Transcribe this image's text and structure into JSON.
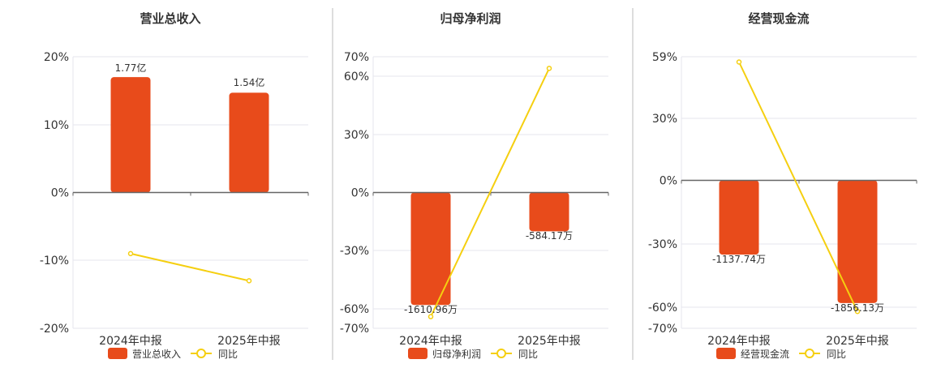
{
  "colors": {
    "bar": "#E84B1B",
    "line": "#F5CF10",
    "grid": "#E6E6EE",
    "axis": "#666666",
    "divider": "#BBBBBB",
    "text": "#333333"
  },
  "legend_common": {
    "line_label": "同比"
  },
  "chart_data": [
    {
      "type": "bar",
      "title": "营业总收入",
      "categories": [
        "2024年中报",
        "2025年中报"
      ],
      "bar_labels": [
        "1.77亿",
        "1.54亿"
      ],
      "bar_values_pct": [
        17,
        14.7
      ],
      "line_values_pct": [
        -9,
        -13
      ],
      "y_ticks": [
        "20%",
        "10%",
        "0%",
        "-10%",
        "-20%"
      ],
      "ylim": [
        -20,
        20
      ],
      "legend": [
        "营业总收入",
        "同比"
      ]
    },
    {
      "type": "bar",
      "title": "归母净利润",
      "categories": [
        "2024年中报",
        "2025年中报"
      ],
      "bar_labels": [
        "-1610.96万",
        "-584.17万"
      ],
      "bar_values_pct": [
        -58,
        -20
      ],
      "line_values_pct": [
        -64,
        64
      ],
      "y_ticks": [
        "70%",
        "60%",
        "30%",
        "0%",
        "-30%",
        "-60%",
        "-70%"
      ],
      "ylim": [
        -70,
        70
      ],
      "legend": [
        "归母净利润",
        "同比"
      ]
    },
    {
      "type": "bar",
      "title": "经营现金流",
      "categories": [
        "2024年中报",
        "2025年中报"
      ],
      "bar_labels": [
        "-1137.74万",
        "-1856.13万"
      ],
      "bar_values_pct": [
        -35,
        -58
      ],
      "line_values_pct": [
        56.5,
        -62
      ],
      "y_ticks": [
        "59%",
        "30%",
        "0%",
        "-30%",
        "-60%",
        "-70%"
      ],
      "ylim": [
        -70,
        59
      ],
      "legend": [
        "经营现金流",
        "同比"
      ]
    }
  ]
}
